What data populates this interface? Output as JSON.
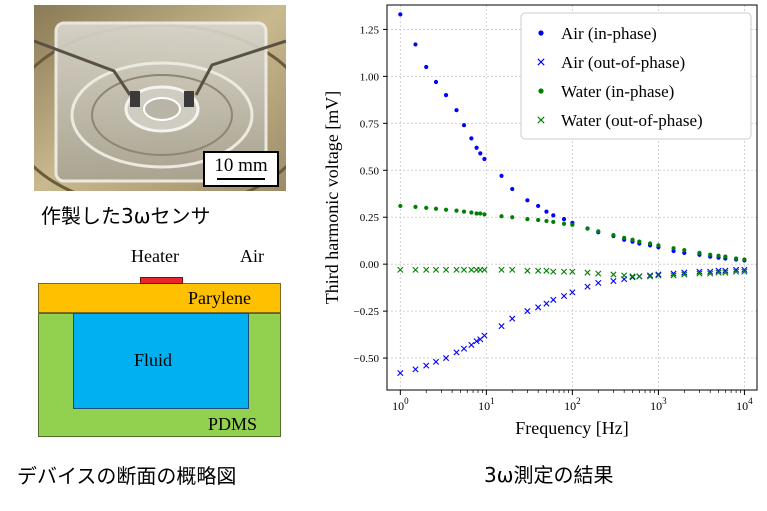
{
  "photo": {
    "scale_label": "10 mm",
    "caption": "作製した3ωセンサ"
  },
  "schematic": {
    "heater_label": "Heater",
    "air_label": "Air",
    "parylene_label": "Parylene",
    "fluid_label": "Fluid",
    "pdms_label": "PDMS",
    "caption": "デバイスの断面の概略図",
    "colors": {
      "heater": "#e5262a",
      "parylene": "#ffc000",
      "pdms": "#92d050",
      "fluid": "#00b0f0"
    }
  },
  "chart_caption": "3ω測定の結果",
  "chart_data": {
    "type": "scatter",
    "title": "",
    "xlabel": "Frequency [Hz]",
    "ylabel": "Third harmonic voltage [mV]",
    "xscale": "log",
    "xlim": [
      0.7,
      14000
    ],
    "ylim": [
      -0.67,
      1.38
    ],
    "xticks": [
      {
        "value": 1,
        "base": "10",
        "exp": "0"
      },
      {
        "value": 10,
        "base": "10",
        "exp": "1"
      },
      {
        "value": 100,
        "base": "10",
        "exp": "2"
      },
      {
        "value": 1000,
        "base": "10",
        "exp": "3"
      },
      {
        "value": 10000,
        "base": "10",
        "exp": "4"
      }
    ],
    "yticks": [
      -0.5,
      -0.25,
      0.0,
      0.25,
      0.5,
      0.75,
      1.0,
      1.25
    ],
    "ytick_labels": [
      "−0.50",
      "−0.25",
      "0.00",
      "0.25",
      "0.50",
      "0.75",
      "1.00",
      "1.25"
    ],
    "grid": true,
    "legend_position": "top-right",
    "series": [
      {
        "name": "Air (in-phase)",
        "color": "#0000ff",
        "marker": "dot",
        "x": [
          1.0,
          1.5,
          2.0,
          2.6,
          3.4,
          4.5,
          5.5,
          6.7,
          7.7,
          8.5,
          9.5,
          15,
          20,
          30,
          40,
          50,
          60,
          80,
          100,
          150,
          200,
          300,
          400,
          500,
          600,
          800,
          1000,
          1500,
          2000,
          3000,
          4000,
          5000,
          6000,
          8000,
          10000
        ],
        "y": [
          1.33,
          1.17,
          1.05,
          0.97,
          0.9,
          0.82,
          0.74,
          0.67,
          0.62,
          0.59,
          0.56,
          0.47,
          0.4,
          0.34,
          0.31,
          0.28,
          0.26,
          0.24,
          0.22,
          0.19,
          0.17,
          0.15,
          0.13,
          0.12,
          0.11,
          0.1,
          0.09,
          0.07,
          0.06,
          0.05,
          0.04,
          0.035,
          0.03,
          0.025,
          0.02
        ]
      },
      {
        "name": "Air (out-of-phase)",
        "color": "#0000ff",
        "marker": "x",
        "x": [
          1.0,
          1.5,
          2.0,
          2.6,
          3.4,
          4.5,
          5.5,
          6.7,
          7.7,
          8.5,
          9.5,
          15,
          20,
          30,
          40,
          50,
          60,
          80,
          100,
          150,
          200,
          300,
          400,
          500,
          600,
          800,
          1000,
          1500,
          2000,
          3000,
          4000,
          5000,
          6000,
          8000,
          10000
        ],
        "y": [
          -0.58,
          -0.56,
          -0.54,
          -0.52,
          -0.5,
          -0.47,
          -0.45,
          -0.43,
          -0.41,
          -0.4,
          -0.38,
          -0.33,
          -0.29,
          -0.25,
          -0.23,
          -0.21,
          -0.19,
          -0.17,
          -0.15,
          -0.12,
          -0.1,
          -0.09,
          -0.08,
          -0.07,
          -0.065,
          -0.06,
          -0.055,
          -0.05,
          -0.045,
          -0.04,
          -0.04,
          -0.035,
          -0.035,
          -0.03,
          -0.03
        ]
      },
      {
        "name": "Water (in-phase)",
        "color": "#008000",
        "marker": "dot",
        "x": [
          1.0,
          1.5,
          2.0,
          2.6,
          3.4,
          4.5,
          5.5,
          6.7,
          7.7,
          8.5,
          9.5,
          15,
          20,
          30,
          40,
          50,
          60,
          80,
          100,
          150,
          200,
          300,
          400,
          500,
          600,
          800,
          1000,
          1500,
          2000,
          3000,
          4000,
          5000,
          6000,
          8000,
          10000
        ],
        "y": [
          0.31,
          0.305,
          0.3,
          0.295,
          0.29,
          0.285,
          0.28,
          0.275,
          0.27,
          0.27,
          0.265,
          0.255,
          0.25,
          0.24,
          0.235,
          0.23,
          0.225,
          0.215,
          0.21,
          0.19,
          0.175,
          0.155,
          0.14,
          0.13,
          0.12,
          0.11,
          0.1,
          0.085,
          0.075,
          0.06,
          0.05,
          0.045,
          0.04,
          0.03,
          0.025
        ]
      },
      {
        "name": "Water (out-of-phase)",
        "color": "#008000",
        "marker": "x",
        "x": [
          1.0,
          1.5,
          2.0,
          2.6,
          3.4,
          4.5,
          5.5,
          6.7,
          7.7,
          8.5,
          9.5,
          15,
          20,
          30,
          40,
          50,
          60,
          80,
          100,
          150,
          200,
          300,
          400,
          500,
          600,
          800,
          1000,
          1500,
          2000,
          3000,
          4000,
          5000,
          6000,
          8000,
          10000
        ],
        "y": [
          -0.03,
          -0.03,
          -0.03,
          -0.03,
          -0.03,
          -0.03,
          -0.03,
          -0.03,
          -0.03,
          -0.03,
          -0.03,
          -0.03,
          -0.03,
          -0.035,
          -0.035,
          -0.035,
          -0.04,
          -0.04,
          -0.04,
          -0.045,
          -0.05,
          -0.055,
          -0.06,
          -0.065,
          -0.065,
          -0.065,
          -0.06,
          -0.06,
          -0.055,
          -0.05,
          -0.05,
          -0.045,
          -0.045,
          -0.04,
          -0.04
        ]
      }
    ]
  }
}
